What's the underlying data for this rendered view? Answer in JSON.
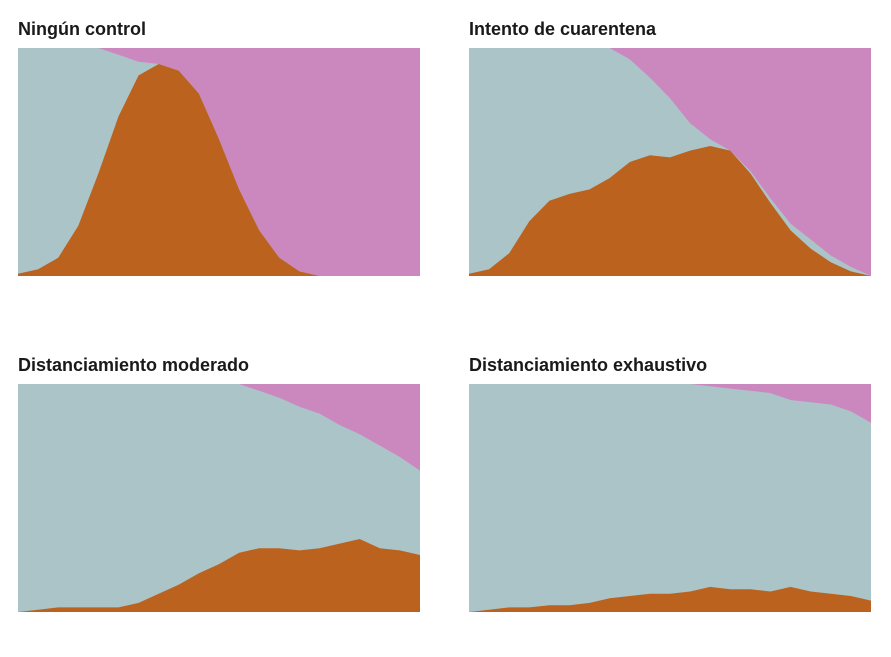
{
  "colors": {
    "susceptible": "#abc4c8",
    "infected": "#bc621f",
    "recovered": "#cb88bf",
    "title": "#1a1a1a"
  },
  "chart_data": [
    {
      "type": "area",
      "title": "Ningún control",
      "stacking": "stacked-to-100",
      "x": [
        0,
        5,
        10,
        15,
        20,
        25,
        30,
        35,
        40,
        45,
        50,
        55,
        60,
        65,
        70,
        75,
        80,
        85,
        90,
        95,
        100
      ],
      "series": [
        {
          "values": [
            1,
            3,
            8,
            22,
            45,
            70,
            88,
            93,
            90,
            80,
            60,
            38,
            20,
            8,
            2,
            0,
            0,
            0,
            0,
            0,
            0
          ]
        },
        {
          "values": [
            0,
            0,
            0,
            0,
            0,
            3,
            6,
            7,
            10,
            20,
            40,
            62,
            80,
            92,
            98,
            100,
            100,
            100,
            100,
            100,
            100
          ]
        }
      ]
    },
    {
      "type": "area",
      "title": "Intento de cuarentena",
      "stacking": "stacked-to-100",
      "x": [
        0,
        5,
        10,
        15,
        20,
        25,
        30,
        35,
        40,
        45,
        50,
        55,
        60,
        65,
        70,
        75,
        80,
        85,
        90,
        95,
        100
      ],
      "series": [
        {
          "values": [
            1,
            3,
            10,
            24,
            33,
            36,
            38,
            43,
            50,
            53,
            52,
            55,
            57,
            55,
            45,
            32,
            20,
            12,
            6,
            2,
            0
          ]
        },
        {
          "values": [
            0,
            0,
            0,
            0,
            0,
            0,
            0,
            0,
            5,
            13,
            22,
            33,
            40,
            45,
            54,
            66,
            77,
            84,
            91,
            96,
            100
          ]
        }
      ]
    },
    {
      "type": "area",
      "title": "Distanciamiento moderado",
      "stacking": "stacked-to-100",
      "x": [
        0,
        5,
        10,
        15,
        20,
        25,
        30,
        35,
        40,
        45,
        50,
        55,
        60,
        65,
        70,
        75,
        80,
        85,
        90,
        95,
        100
      ],
      "series": [
        {
          "values": [
            0,
            1,
            2,
            2,
            2,
            2,
            4,
            8,
            12,
            17,
            21,
            26,
            28,
            28,
            27,
            28,
            30,
            32,
            28,
            27,
            25
          ]
        },
        {
          "values": [
            0,
            0,
            0,
            0,
            0,
            0,
            0,
            0,
            0,
            0,
            0,
            0,
            3,
            6,
            10,
            13,
            18,
            22,
            27,
            32,
            38
          ]
        }
      ]
    },
    {
      "type": "area",
      "title": "Distanciamiento exhaustivo",
      "stacking": "stacked-to-100",
      "x": [
        0,
        5,
        10,
        15,
        20,
        25,
        30,
        35,
        40,
        45,
        50,
        55,
        60,
        65,
        70,
        75,
        80,
        85,
        90,
        95,
        100
      ],
      "series": [
        {
          "values": [
            0,
            1,
            2,
            2,
            3,
            3,
            4,
            6,
            7,
            8,
            8,
            9,
            11,
            10,
            10,
            9,
            11,
            9,
            8,
            7,
            5
          ]
        },
        {
          "values": [
            0,
            0,
            0,
            0,
            0,
            0,
            0,
            0,
            0,
            0,
            0,
            0,
            1,
            2,
            3,
            4,
            7,
            8,
            9,
            12,
            17
          ]
        }
      ]
    }
  ]
}
